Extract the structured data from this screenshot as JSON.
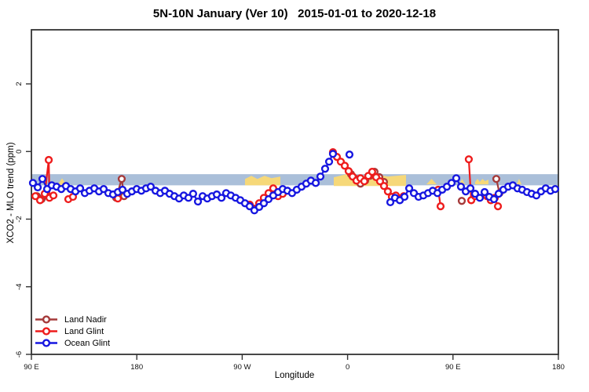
{
  "title": "5N-10N January (Ver 10)   2015-01-01 to 2020-12-18",
  "axes": {
    "x_label": "Longitude",
    "y_label": "XCO2 - MLO trend (ppm)"
  },
  "chart_data": {
    "type": "line",
    "title": "5N-10N January (Ver 10)   2015-01-01 to 2020-12-18",
    "xlabel": "Longitude",
    "ylabel": "XCO2 - MLO trend (ppm)",
    "xlim": [
      0,
      450
    ],
    "ylim": [
      -6,
      3.6
    ],
    "grid": false,
    "legend_position": "bottom-left",
    "colors": {
      "band": "#aabfd9",
      "highlight": "#f6d879",
      "axis": "#333333",
      "land_nadir": "#a53a3a",
      "land_glint": "#ee1c1c",
      "ocean_glint": "#1616e0"
    },
    "x_axis": {
      "ticks": [
        {
          "pos": 0,
          "label": "90 E"
        },
        {
          "pos": 90,
          "label": "180"
        },
        {
          "pos": 180,
          "label": "90 W"
        },
        {
          "pos": 270,
          "label": "0"
        },
        {
          "pos": 360,
          "label": "90 E"
        },
        {
          "pos": 450,
          "label": "180"
        }
      ]
    },
    "y_axis": {
      "ticks": [
        {
          "pos": 2,
          "label": "2"
        },
        {
          "pos": 0,
          "label": "0"
        },
        {
          "pos": -2,
          "label": "-2"
        },
        {
          "pos": -4,
          "label": "-4"
        },
        {
          "pos": -6,
          "label": "-6"
        }
      ]
    },
    "band": {
      "top": -0.67,
      "bottom": -1.0
    },
    "highlights": [
      {
        "from": 22.1,
        "to": 30.2,
        "top": -0.79,
        "bottom": -1.0,
        "shape": "triangle"
      },
      {
        "from": 182.4,
        "to": 212.6,
        "top": -0.72,
        "bottom": -1.0,
        "shape": "jagged"
      },
      {
        "from": 258.2,
        "to": 319.9,
        "top": -0.67,
        "bottom": -1.02,
        "shape": "jagged"
      },
      {
        "from": 337.3,
        "to": 346.1,
        "top": -0.81,
        "bottom": -0.97,
        "shape": "triangle"
      },
      {
        "from": 365.5,
        "to": 370.2,
        "top": -0.81,
        "bottom": -0.97,
        "shape": "triangle"
      },
      {
        "from": 378.9,
        "to": 390.3,
        "top": -0.81,
        "bottom": -0.97,
        "shape": "jagged"
      },
      {
        "from": 414.4,
        "to": 418.5,
        "top": -0.81,
        "bottom": -0.97,
        "shape": "triangle"
      }
    ],
    "series": [
      {
        "name": "Land Nadir",
        "color_key": "land_nadir",
        "segments": [
          [
            [
              4.7,
              -1.32
            ],
            [
              8.7,
              -1.41
            ],
            [
              12.7,
              -1.3
            ]
          ],
          [
            [
              72.4,
              -1.37
            ],
            [
              77.1,
              -0.81
            ],
            [
              79.1,
              -1.32
            ]
          ],
          [
            [
              272.9,
              -0.67
            ],
            [
              277.0,
              -0.81
            ],
            [
              281.0,
              -0.95
            ],
            [
              285.0,
              -0.86
            ],
            [
              289.0,
              -0.72
            ],
            [
              293.0,
              -0.6
            ],
            [
              297.1,
              -0.76
            ],
            [
              301.1,
              -0.9
            ]
          ],
          [
            [
              367.5,
              -1.46
            ]
          ],
          [
            [
              397.0,
              -0.81
            ],
            [
              399.7,
              -1.23
            ]
          ]
        ]
      },
      {
        "name": "Land Glint",
        "color_key": "land_glint",
        "segments": [
          [
            [
              3.4,
              -1.32
            ],
            [
              7.4,
              -1.44
            ],
            [
              11.4,
              -1.25
            ],
            [
              14.8,
              -0.25
            ],
            [
              15.4,
              -1.37
            ],
            [
              18.8,
              -1.3
            ]
          ],
          [
            [
              31.5,
              -1.41
            ],
            [
              35.5,
              -1.34
            ]
          ],
          [
            [
              73.8,
              -1.39
            ]
          ],
          [
            [
              186.4,
              -1.57
            ],
            [
              190.4,
              -1.69
            ],
            [
              194.5,
              -1.53
            ],
            [
              198.5,
              -1.37
            ],
            [
              202.5,
              -1.23
            ],
            [
              206.5,
              -1.09
            ],
            [
              210.6,
              -1.32
            ],
            [
              214.6,
              -1.25
            ]
          ],
          [
            [
              257.5,
              -0.02
            ],
            [
              260.9,
              -0.16
            ],
            [
              264.2,
              -0.3
            ],
            [
              267.6,
              -0.42
            ],
            [
              270.9,
              -0.58
            ],
            [
              274.3,
              -0.74
            ],
            [
              277.6,
              -0.86
            ],
            [
              281.0,
              -0.79
            ],
            [
              284.3,
              -0.88
            ],
            [
              287.7,
              -0.72
            ],
            [
              291.0,
              -0.6
            ],
            [
              294.4,
              -0.76
            ],
            [
              297.7,
              -0.88
            ],
            [
              301.1,
              -1.02
            ],
            [
              304.4,
              -1.18
            ],
            [
              307.8,
              -1.34
            ],
            [
              311.2,
              -1.3
            ],
            [
              314.6,
              -1.39
            ],
            [
              317.9,
              -1.32
            ]
          ],
          [
            [
              347.4,
              -1.13
            ],
            [
              349.4,
              -1.62
            ]
          ],
          [
            [
              373.5,
              -0.23
            ],
            [
              375.6,
              -1.44
            ],
            [
              378.9,
              -1.32
            ]
          ],
          [
            [
              389.0,
              -1.32
            ],
            [
              392.3,
              -1.44
            ],
            [
              395.7,
              -1.37
            ],
            [
              398.4,
              -1.62
            ]
          ]
        ]
      },
      {
        "name": "Ocean Glint",
        "color_key": "ocean_glint",
        "segments": [
          [
            [
              1.3,
              -0.93
            ],
            [
              5.4,
              -1.06
            ],
            [
              9.4,
              -0.81
            ],
            [
              13.4,
              -1.11
            ],
            [
              17.4,
              -1.0
            ],
            [
              21.5,
              -1.04
            ],
            [
              25.5,
              -1.11
            ],
            [
              29.5,
              -1.02
            ],
            [
              33.5,
              -1.11
            ],
            [
              37.6,
              -1.18
            ],
            [
              41.6,
              -1.09
            ],
            [
              45.6,
              -1.23
            ],
            [
              49.6,
              -1.16
            ],
            [
              53.7,
              -1.09
            ],
            [
              57.7,
              -1.18
            ],
            [
              61.7,
              -1.11
            ],
            [
              65.7,
              -1.23
            ],
            [
              69.7,
              -1.27
            ],
            [
              73.8,
              -1.2
            ],
            [
              77.8,
              -1.13
            ],
            [
              81.8,
              -1.25
            ],
            [
              85.8,
              -1.18
            ],
            [
              89.9,
              -1.11
            ],
            [
              93.9,
              -1.16
            ],
            [
              97.9,
              -1.09
            ],
            [
              101.9,
              -1.04
            ],
            [
              106.0,
              -1.16
            ],
            [
              110.0,
              -1.23
            ],
            [
              114.0,
              -1.16
            ],
            [
              118.0,
              -1.25
            ],
            [
              122.1,
              -1.32
            ],
            [
              126.1,
              -1.39
            ],
            [
              130.1,
              -1.3
            ],
            [
              134.1,
              -1.37
            ],
            [
              138.1,
              -1.25
            ],
            [
              142.2,
              -1.48
            ],
            [
              146.2,
              -1.32
            ],
            [
              150.2,
              -1.39
            ],
            [
              154.2,
              -1.32
            ],
            [
              158.3,
              -1.27
            ],
            [
              162.3,
              -1.37
            ],
            [
              166.3,
              -1.23
            ],
            [
              170.3,
              -1.3
            ],
            [
              174.4,
              -1.37
            ],
            [
              178.4,
              -1.44
            ],
            [
              182.4,
              -1.53
            ],
            [
              186.4,
              -1.62
            ],
            [
              190.4,
              -1.74
            ],
            [
              194.5,
              -1.64
            ],
            [
              198.5,
              -1.53
            ],
            [
              202.5,
              -1.41
            ],
            [
              206.5,
              -1.3
            ],
            [
              210.6,
              -1.2
            ],
            [
              214.6,
              -1.11
            ],
            [
              218.6,
              -1.16
            ],
            [
              222.6,
              -1.23
            ],
            [
              226.6,
              -1.13
            ],
            [
              230.7,
              -1.04
            ],
            [
              234.7,
              -0.95
            ],
            [
              238.7,
              -0.86
            ],
            [
              242.8,
              -0.93
            ],
            [
              246.8,
              -0.74
            ],
            [
              250.8,
              -0.51
            ],
            [
              254.2,
              -0.3
            ],
            [
              257.5,
              -0.07
            ]
          ],
          [
            [
              271.6,
              -0.09
            ]
          ],
          [
            [
              306.5,
              -1.5
            ],
            [
              310.5,
              -1.37
            ],
            [
              314.6,
              -1.44
            ],
            [
              318.6,
              -1.34
            ],
            [
              322.6,
              -1.09
            ],
            [
              326.6,
              -1.23
            ],
            [
              330.6,
              -1.34
            ],
            [
              334.7,
              -1.3
            ],
            [
              338.7,
              -1.23
            ],
            [
              342.7,
              -1.16
            ],
            [
              346.7,
              -1.23
            ],
            [
              350.8,
              -1.13
            ],
            [
              354.8,
              -1.04
            ],
            [
              358.8,
              -0.93
            ],
            [
              362.8,
              -0.79
            ],
            [
              366.8,
              -1.04
            ],
            [
              370.9,
              -1.18
            ],
            [
              374.9,
              -1.09
            ],
            [
              378.9,
              -1.25
            ],
            [
              382.9,
              -1.37
            ],
            [
              387.0,
              -1.2
            ],
            [
              391.0,
              -1.34
            ],
            [
              395.0,
              -1.41
            ],
            [
              399.0,
              -1.25
            ],
            [
              403.0,
              -1.13
            ],
            [
              407.1,
              -1.04
            ],
            [
              411.1,
              -1.0
            ],
            [
              415.1,
              -1.09
            ],
            [
              419.1,
              -1.13
            ],
            [
              423.2,
              -1.2
            ],
            [
              427.2,
              -1.25
            ],
            [
              431.2,
              -1.3
            ],
            [
              435.2,
              -1.18
            ],
            [
              439.2,
              -1.09
            ],
            [
              443.3,
              -1.16
            ],
            [
              447.3,
              -1.11
            ]
          ]
        ]
      }
    ]
  }
}
